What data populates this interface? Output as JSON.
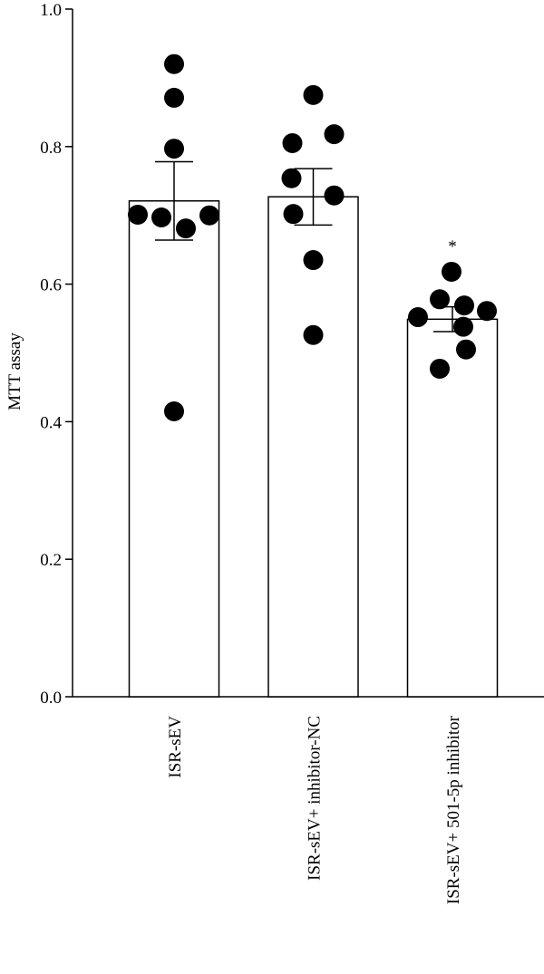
{
  "chart_data": {
    "type": "bar_dot",
    "y_label": "MTT assay",
    "categories": [
      "ISR-sEV",
      "ISR-sEV+ inhibitor-NC",
      "ISR-sEV+ 501-5p inhibitor"
    ],
    "values": [
      0.721,
      0.727,
      0.549
    ],
    "errors": [
      0.057,
      0.041,
      0.018
    ],
    "points": [
      [
        0.92,
        0.871,
        0.797,
        0.701,
        0.697,
        0.7,
        0.681,
        0.415
      ],
      [
        0.875,
        0.805,
        0.818,
        0.754,
        0.729,
        0.702,
        0.635,
        0.526
      ],
      [
        0.618,
        0.578,
        0.552,
        0.569,
        0.561,
        0.538,
        0.505,
        0.477
      ]
    ],
    "annotations": [
      null,
      null,
      "*"
    ],
    "bar_color": "#ffffff",
    "point_color": "#000000",
    "ylim": [
      0,
      1.0
    ],
    "yticks": [
      {
        "value": 0,
        "label": "0.0"
      },
      0.2,
      0.4,
      0.6,
      0.8,
      {
        "value": 1.0,
        "label": "1.0"
      }
    ]
  }
}
